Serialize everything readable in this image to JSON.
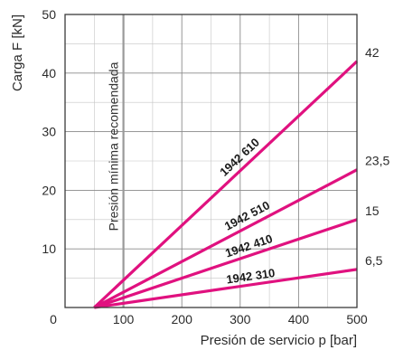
{
  "chart_data": {
    "type": "line",
    "xlabel": "Presión de servicio p [bar]",
    "ylabel": "Carga F [kN]",
    "xlim": [
      0,
      500
    ],
    "ylim": [
      0,
      50
    ],
    "x_ticks": [
      0,
      100,
      200,
      300,
      400,
      500
    ],
    "y_ticks": [
      10,
      20,
      30,
      40,
      50
    ],
    "grid": true,
    "line_color": "#e0117f",
    "reference_line": {
      "x": 100,
      "label": "Presión mínima recomendada",
      "color": "#9a9a9a"
    },
    "series": [
      {
        "name": "1942 610",
        "x": [
          50,
          500
        ],
        "y": [
          0,
          42
        ],
        "end_label": "42"
      },
      {
        "name": "1942 510",
        "x": [
          50,
          500
        ],
        "y": [
          0,
          23.5
        ],
        "end_label": "23,5"
      },
      {
        "name": "1942 410",
        "x": [
          50,
          500
        ],
        "y": [
          0,
          15
        ],
        "end_label": "15"
      },
      {
        "name": "1942 310",
        "x": [
          50,
          500
        ],
        "y": [
          0,
          6.5
        ],
        "end_label": "6,5"
      }
    ]
  }
}
